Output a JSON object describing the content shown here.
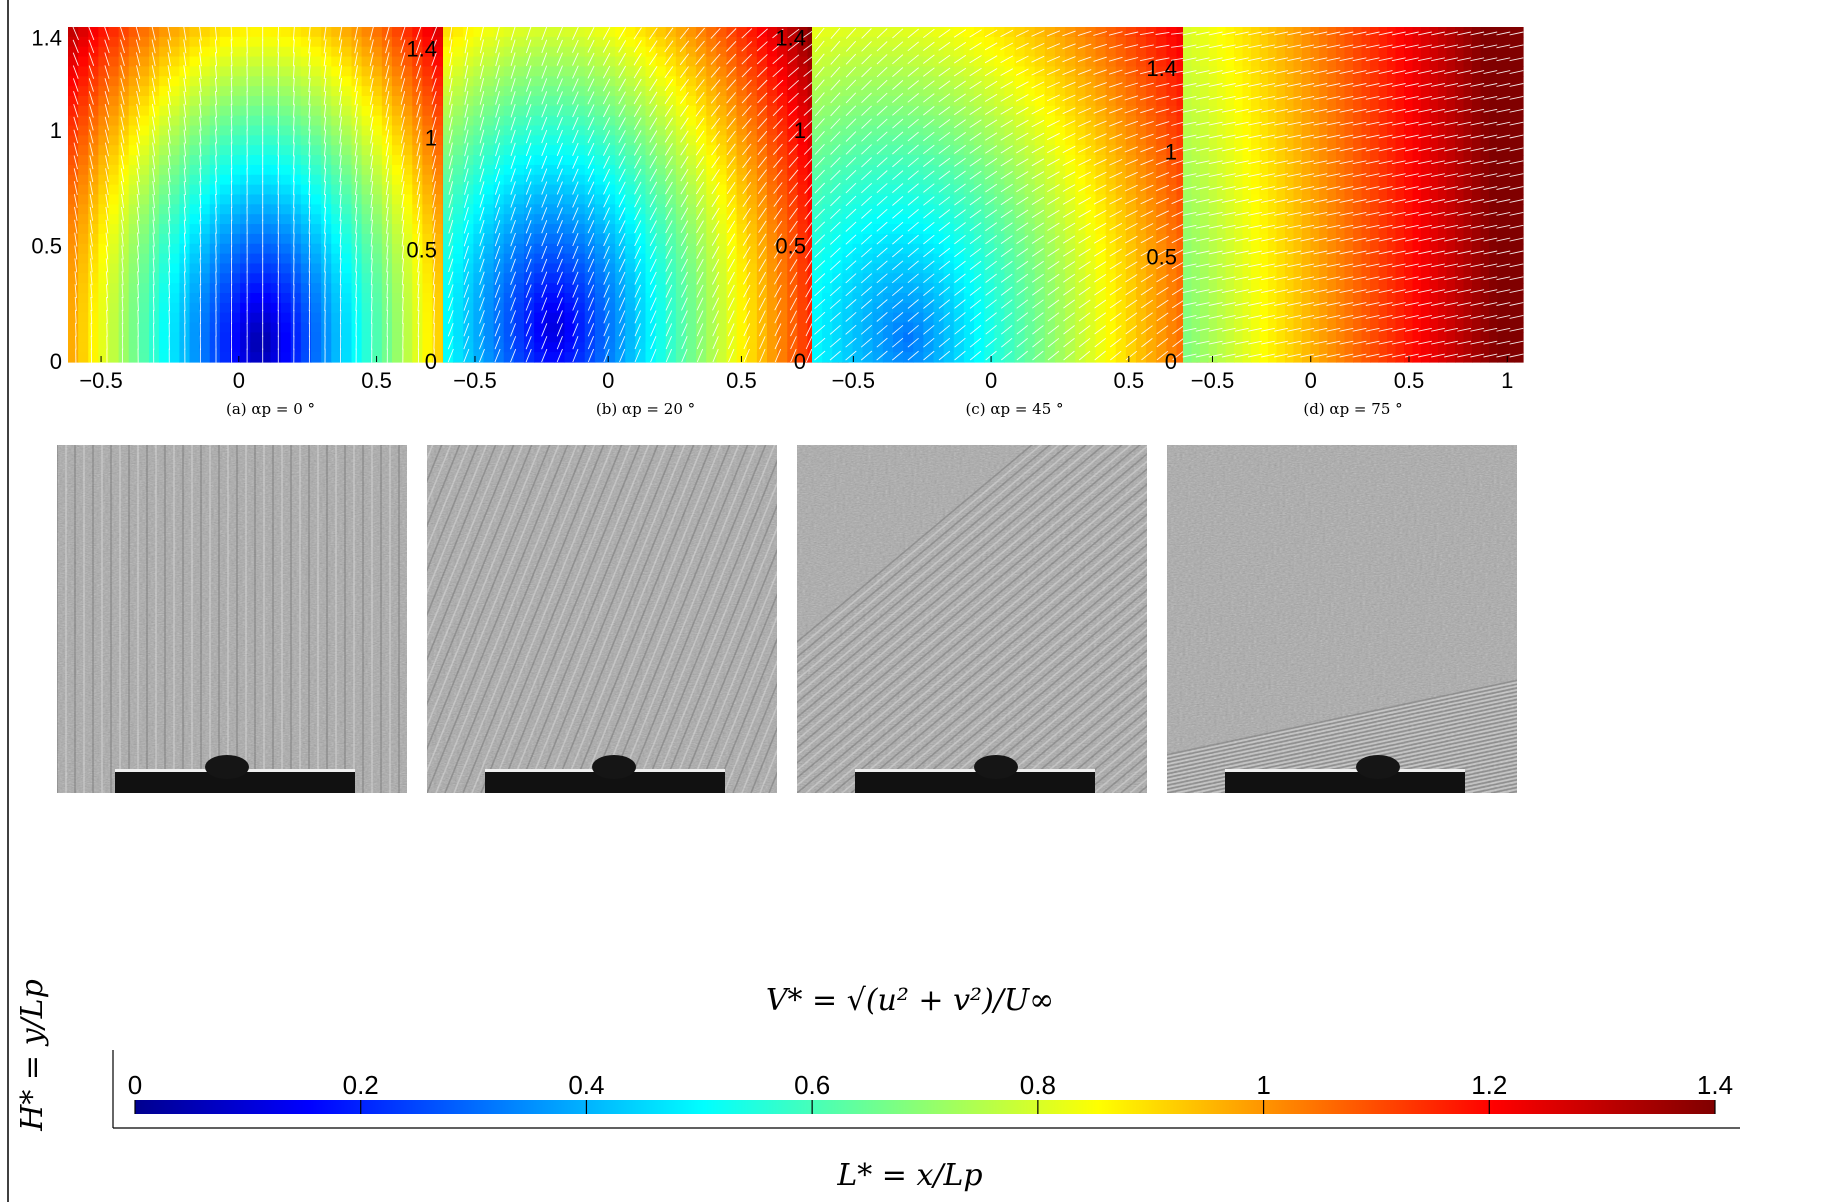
{
  "chart_data": [
    {
      "type": "heatmap",
      "caption": "(a) αp = 0 °",
      "xlim": [
        -0.62,
        0.85
      ],
      "ylim": [
        0,
        1.45
      ],
      "xticks": [
        -0.5,
        0,
        0.5
      ],
      "yticks": [
        0,
        0.5,
        1,
        1.4
      ],
      "xtick_labels": [
        "−0.5",
        "0",
        "0.5"
      ],
      "ytick_labels": [
        "0",
        "0.5",
        "1",
        "1.4"
      ],
      "field": {
        "min_x": 0.08,
        "min_y": 0.08,
        "sx": 0.45,
        "sy": 1.0,
        "base": 0.05,
        "grow": 0.62,
        "bias": 0.0
      },
      "arrow_angle_deg": 90
    },
    {
      "type": "heatmap",
      "caption": "(b) αp = 20 °",
      "xlim": [
        -0.62,
        0.9
      ],
      "ylim": [
        0,
        1.5
      ],
      "xticks": [
        -0.5,
        0,
        0.5
      ],
      "yticks": [
        0,
        0.5,
        1,
        1.4
      ],
      "xtick_labels": [
        "−0.5",
        "0",
        "0.5"
      ],
      "ytick_labels": [
        "0",
        "0.5",
        "1",
        "1.4"
      ],
      "field": {
        "min_x": -0.2,
        "min_y": 0.15,
        "sx": 0.55,
        "sy": 1.1,
        "base": 0.1,
        "grow": 0.58,
        "bias": 0.04
      },
      "arrow_angle_deg": 68
    },
    {
      "type": "heatmap",
      "caption": "(c) αp = 45 °",
      "xlim": [
        -0.65,
        0.82
      ],
      "ylim": [
        0,
        1.45
      ],
      "xticks": [
        -0.5,
        0,
        0.5
      ],
      "yticks": [
        0,
        0.5,
        1,
        1.4
      ],
      "xtick_labels": [
        "−0.5",
        "0",
        "0.5"
      ],
      "ytick_labels": [
        "0",
        "0.5",
        "1",
        "1.4"
      ],
      "field": {
        "min_x": -0.3,
        "min_y": 0.1,
        "sx": 0.7,
        "sy": 1.2,
        "base": 0.3,
        "grow": 0.45,
        "bias": 0.1
      },
      "arrow_angle_deg": 40
    },
    {
      "type": "heatmap",
      "caption": "(d) αp = 75 °",
      "xlim": [
        -0.65,
        1.08
      ],
      "ylim": [
        0,
        1.6
      ],
      "xticks": [
        -0.5,
        0,
        0.5,
        1
      ],
      "yticks": [
        0,
        0.5,
        1,
        1.4
      ],
      "xtick_labels": [
        "−0.5",
        "0",
        "0.5",
        "1"
      ],
      "ytick_labels": [
        "0",
        "0.5",
        "1",
        "1.4"
      ],
      "field": {
        "min_x": -0.9,
        "min_y": 0.0,
        "sx": 1.2,
        "sy": 3.0,
        "base": 0.62,
        "grow": 0.35,
        "bias": 0.15
      },
      "arrow_angle_deg": 12
    }
  ],
  "colorbar": {
    "title": "V* = √(u² + v²)/U∞",
    "min": 0,
    "max": 1.4,
    "ticks": [
      0,
      0.2,
      0.4,
      0.6,
      0.8,
      1,
      1.2,
      1.4
    ],
    "tick_labels": [
      "0",
      "0.2",
      "0.4",
      "0.6",
      "0.8",
      "1",
      "1.2",
      "1.4"
    ],
    "colormap": "jet"
  },
  "axis_labels": {
    "x": "L* = x/Lp",
    "y": "H* = y/Lp"
  },
  "photos": [
    "flow-visualization-0",
    "flow-visualization-20",
    "flow-visualization-45",
    "flow-visualization-75"
  ],
  "colors": {
    "arrow": "#ffffff",
    "frame": "#000000"
  }
}
